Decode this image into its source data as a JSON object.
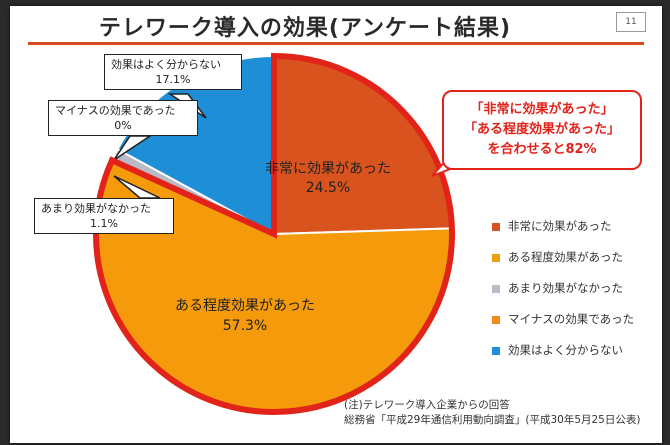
{
  "slide": {
    "title": "テレワーク導入の効果(アンケート結果)",
    "page_number": "11",
    "highlight_lines": [
      "「非常に効果があった」",
      "「ある程度効果があった」",
      "を合わせると82%"
    ],
    "source_lines": [
      "(注)テレワーク導入企業からの回答",
      "総務省「平成29年通信利用動向調査」(平成30年5月25日公表)"
    ]
  },
  "chart_data": {
    "type": "pie",
    "title": "テレワーク導入の効果(アンケート結果)",
    "slices": [
      {
        "label": "非常に効果があった",
        "value": 24.5,
        "display": "24.5%",
        "color": "#d9531e"
      },
      {
        "label": "ある程度効果があった",
        "value": 57.3,
        "display": "57.3%",
        "color": "#f49a0b"
      },
      {
        "label": "あまり効果がなかった",
        "value": 1.1,
        "display": "1.1%",
        "color": "#b9b9c8"
      },
      {
        "label": "マイナスの効果であった",
        "value": 0,
        "display": "0%",
        "color": "#f08a1c"
      },
      {
        "label": "効果はよく分からない",
        "value": 17.1,
        "display": "17.1%",
        "color": "#1e8fd6"
      }
    ],
    "inline_labels": {
      "very_effective": {
        "label": "非常に効果があった",
        "value": "24.5%"
      },
      "somewhat_effective": {
        "label": "ある程度効果があった",
        "value": "57.3%"
      }
    },
    "callouts": {
      "unknown": {
        "label": "効果はよく分からない",
        "value": "17.1%"
      },
      "negative": {
        "label": "マイナスの効果であった",
        "value": "0%"
      },
      "not_much": {
        "label": "あまり効果がなかった",
        "value": "1.1%"
      }
    },
    "legend_position": "right",
    "highlight_color": "#e2231a"
  }
}
